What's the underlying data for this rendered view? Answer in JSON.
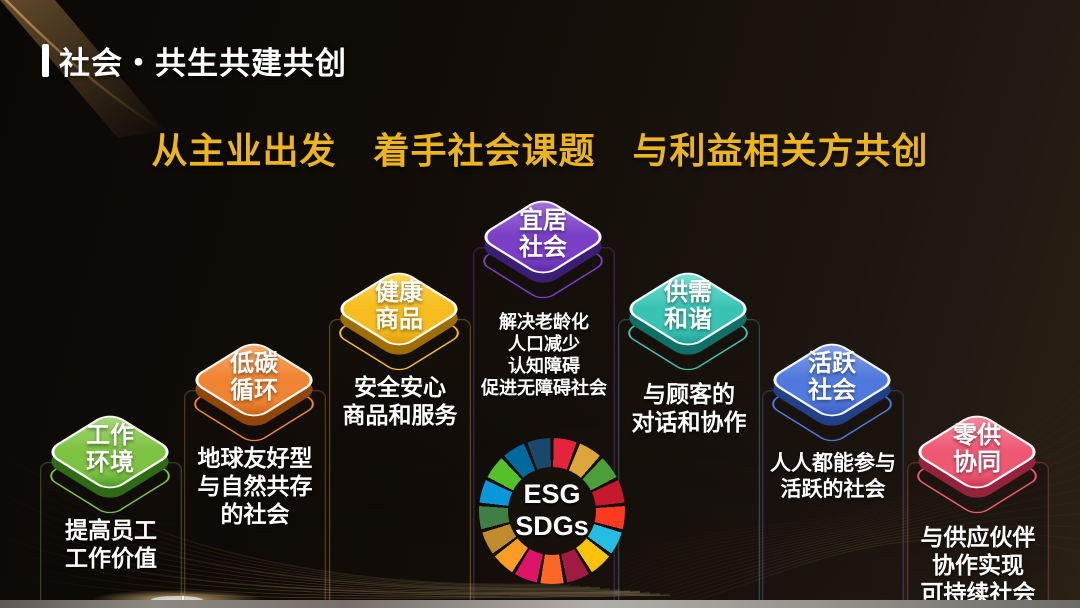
{
  "slide": {
    "title": "社会・共生共建共创",
    "subtitle": "从主业出发　着手社会课题　与利益相关方共创",
    "accent_gold": "#ECB51D"
  },
  "podiums": [
    {
      "id": "work-environment",
      "label": "工作\n环境",
      "desc": "提高员工\n工作价值",
      "light": "#A9D97E",
      "main": "#7DC242",
      "dark": "#3F8F1F"
    },
    {
      "id": "low-carbon-cycle",
      "label": "低碳\n循环",
      "desc": "地球友好型\n与自然共存\n的社会",
      "light": "#F9B072",
      "main": "#F08432",
      "dark": "#C05E0A"
    },
    {
      "id": "healthy-products",
      "label": "健康\n商品",
      "desc": "安全安心\n商品和服务",
      "light": "#FFD95A",
      "main": "#F7BC1E",
      "dark": "#D39200"
    },
    {
      "id": "livable-society",
      "label": "宜居\n社会",
      "desc": "解决老龄化\n人口减少\n认知障碍\n促进无障碍社会",
      "light": "#A578E0",
      "main": "#7A3FC6",
      "dark": "#50279B"
    },
    {
      "id": "supply-demand-harmony",
      "label": "供需\n和谐",
      "desc": "与顾客的\n对话和协作",
      "light": "#7FE3D6",
      "main": "#38C3B3",
      "dark": "#149588"
    },
    {
      "id": "active-society",
      "label": "活跃\n社会",
      "desc": "人人都能参与\n活跃的社会",
      "light": "#88A6EC",
      "main": "#4F79DC",
      "dark": "#2E55B4"
    },
    {
      "id": "retail-supplier-collab",
      "label": "零供\n协同",
      "desc": "与供应伙伴\n协作实现\n可持续社会",
      "light": "#F78CA0",
      "main": "#EE5873",
      "dark": "#C52E4D"
    }
  ],
  "esg_wheel": {
    "line1": "ESG",
    "line2": "SDGs",
    "sdg_colors": [
      "#E5243B",
      "#DDA63A",
      "#4C9F38",
      "#C5192D",
      "#FF3A21",
      "#26BDE2",
      "#FCC30B",
      "#A21942",
      "#FD6925",
      "#DD1367",
      "#FD9D24",
      "#BF8B2E",
      "#3F7E44",
      "#0A97D9",
      "#56C02B",
      "#00689D",
      "#19486A"
    ]
  }
}
